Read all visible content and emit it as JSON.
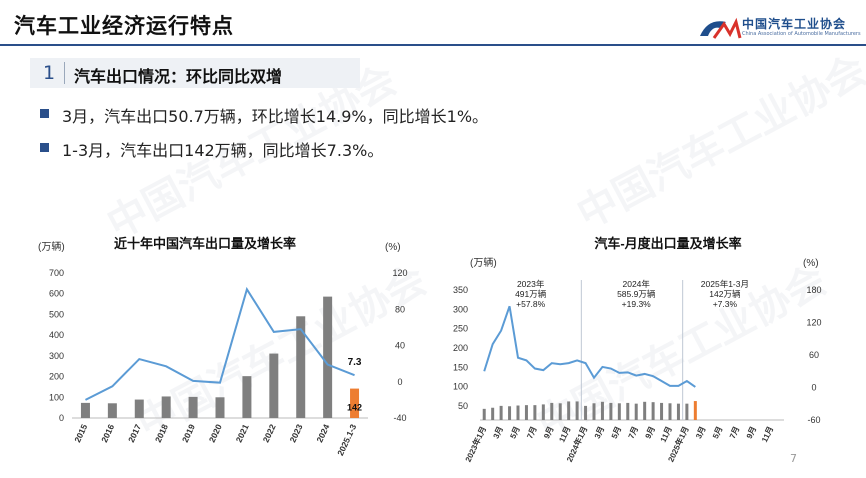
{
  "page": {
    "title": "汽车工业经济运行特点",
    "org_name": "中国汽车工业协会",
    "org_name_en": "China Association of Automobile Manufacturers",
    "section_number": "1",
    "section_title": "汽车出口情况：环比同比双增",
    "bullets": [
      "3月，汽车出口50.7万辆，环比增长14.9%，同比增长1%。",
      "1-3月，汽车出口142万辆，同比增长7.3%。"
    ],
    "page_number": "7",
    "colors": {
      "accent": "#2a4f8a",
      "bar": "#7f7f7f",
      "highlight_bar": "#ed7d31",
      "line": "#5b9bd5"
    }
  },
  "chart_data": [
    {
      "type": "bar",
      "title": "近十年中国汽车出口量及增长率",
      "y_unit_left": "(万辆)",
      "y_unit_right": "(%)",
      "categories": [
        "2015",
        "2016",
        "2017",
        "2018",
        "2019",
        "2020",
        "2021",
        "2022",
        "2023",
        "2024",
        "2025.1-3"
      ],
      "series": [
        {
          "kind": "bar",
          "values": [
            73,
            71,
            89,
            104,
            102,
            100,
            202,
            311,
            491,
            586,
            142
          ]
        },
        {
          "kind": "line",
          "axis": "right",
          "values": [
            -20,
            -5,
            25,
            17,
            1,
            -1,
            102,
            55,
            58,
            19,
            7.3
          ]
        }
      ],
      "data_labels": {
        "bar_last": "142",
        "line_last": "7.3"
      },
      "ylim_left": [
        0,
        700
      ],
      "yticks_left": [
        "0",
        "100",
        "200",
        "300",
        "400",
        "500",
        "600",
        "700"
      ],
      "ylim_right": [
        -40,
        120
      ],
      "yticks_right": [
        "-40",
        "0",
        "40",
        "80",
        "120"
      ]
    },
    {
      "type": "bar",
      "title": "汽车-月度出口量及增长率",
      "y_unit_left": "(万辆)",
      "y_unit_right": "(%)",
      "x_tick_labels": [
        "2023年1月",
        "3月",
        "5月",
        "7月",
        "9月",
        "11月",
        "2024年1月",
        "3月",
        "5月",
        "7月",
        "9月",
        "11月",
        "2025年1月",
        "3月",
        "5月",
        "7月",
        "9月",
        "11月"
      ],
      "series": [
        {
          "kind": "bar",
          "values": [
            30,
            33,
            38,
            37,
            39,
            40,
            40,
            42,
            46,
            45,
            50,
            50,
            38,
            45,
            49,
            46,
            45,
            46,
            44,
            49,
            48,
            46,
            45,
            44,
            44,
            51,
            null,
            null,
            null,
            null,
            null,
            null,
            null,
            null,
            null,
            null
          ]
        },
        {
          "kind": "line",
          "axis": "right",
          "values": [
            30,
            80,
            105,
            150,
            55,
            50,
            35,
            32,
            45,
            43,
            45,
            50,
            45,
            18,
            38,
            35,
            27,
            28,
            22,
            25,
            21,
            12,
            3,
            3,
            12,
            1,
            null,
            null,
            null,
            null,
            null,
            null,
            null,
            null,
            null,
            null
          ]
        }
      ],
      "annotations": [
        {
          "lines": [
            "2023年",
            "491万辆",
            "+57.8%"
          ]
        },
        {
          "lines": [
            "2024年",
            "585.9万辆",
            "+19.3%"
          ]
        },
        {
          "lines": [
            "2025年1-3月",
            "142万辆",
            "+7.3%"
          ]
        }
      ],
      "ylim_left": [
        0,
        350
      ],
      "yticks_left": [
        "50",
        "100",
        "150",
        "200",
        "250",
        "300",
        "350"
      ],
      "ylim_right": [
        -60,
        180
      ],
      "yticks_right": [
        "-60",
        "0",
        "60",
        "120",
        "180"
      ]
    }
  ]
}
